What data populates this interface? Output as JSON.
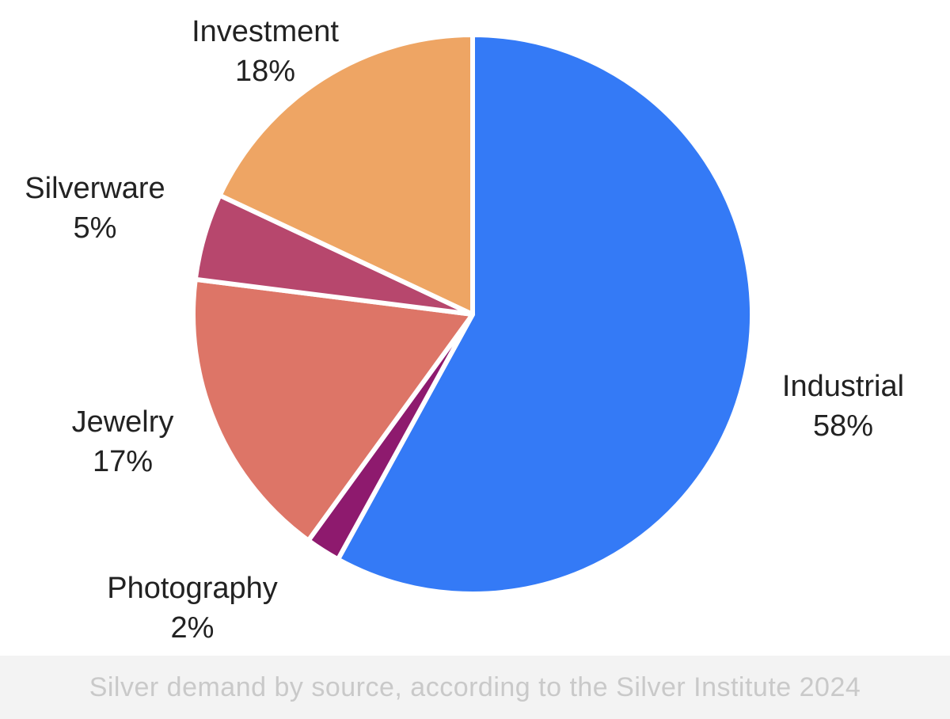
{
  "chart_data": {
    "type": "pie",
    "title": "",
    "slices": [
      {
        "label": "Industrial",
        "value": 58,
        "value_label": "58%",
        "color": "#347af6"
      },
      {
        "label": "Photography",
        "value": 2,
        "value_label": "2%",
        "color": "#8e1a6e"
      },
      {
        "label": "Jewelry",
        "value": 17,
        "value_label": "17%",
        "color": "#dd7567"
      },
      {
        "label": "Silverware",
        "value": 5,
        "value_label": "5%",
        "color": "#b7476d"
      },
      {
        "label": "Investment",
        "value": 18,
        "value_label": "18%",
        "color": "#eea564"
      }
    ],
    "start_angle": "top (12 o'clock)",
    "direction": "clockwise"
  },
  "caption": "Silver demand by source, according to the Silver Institute 2024"
}
